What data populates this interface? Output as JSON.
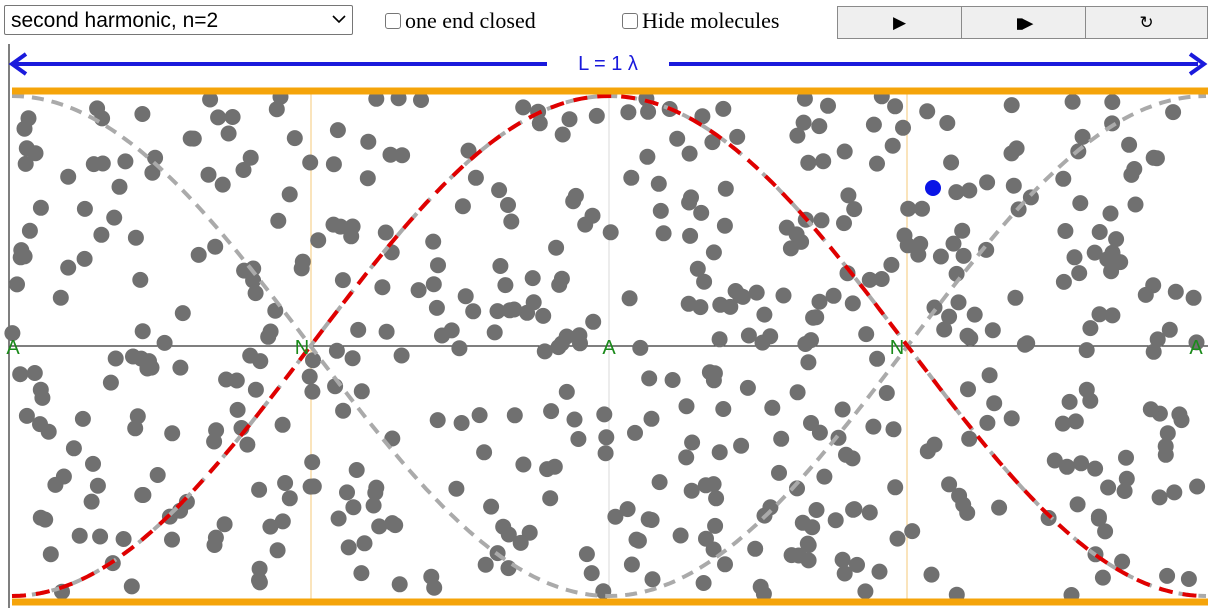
{
  "toolbar": {
    "mode_select": {
      "value": "second harmonic, n=2"
    },
    "one_end_closed": {
      "label": "one end closed",
      "checked": false
    },
    "hide_molecules": {
      "label": "Hide molecules",
      "checked": false
    },
    "play_button": {
      "label": "▶",
      "icon": "play-icon"
    },
    "step_button": {
      "label": "▮▶",
      "icon": "step-forward-icon"
    },
    "reset_button": {
      "label": "↻",
      "icon": "reset-icon"
    }
  },
  "simulation": {
    "length_label": "L = 1 λ",
    "harmonic_n": 2,
    "markers": [
      "A",
      "N",
      "A",
      "N",
      "A"
    ],
    "colors": {
      "tube": "#f5a40a",
      "length_arrow": "#1a1adc",
      "wave": "#e00000",
      "envelope": "#aaaaaa",
      "molecule": "#707070",
      "tracked_molecule": "#0a14e6",
      "marker": "#1a8a1a",
      "node_line": "#f5c87a"
    }
  }
}
